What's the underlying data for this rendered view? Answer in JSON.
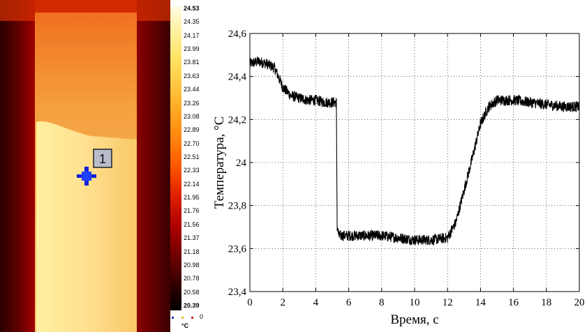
{
  "thermal_image": {
    "marker_label": "1"
  },
  "colorbar": {
    "labels": [
      "24.53",
      "24.35",
      "24.17",
      "23.99",
      "23.81",
      "23.63",
      "23.44",
      "23.26",
      "23.08",
      "22.89",
      "22.70",
      "22.51",
      "22.33",
      "22.14",
      "21.95",
      "21.76",
      "21.56",
      "21.37",
      "21.18",
      "20.98",
      "20.78",
      "20.58",
      "20.39"
    ],
    "footer_value": "0",
    "unit": "°C"
  },
  "chart_data": {
    "type": "line",
    "xlabel": "Время, с",
    "ylabel": "Температура, °С",
    "xlim": [
      0,
      20
    ],
    "ylim": [
      23.4,
      24.6
    ],
    "x_ticks": [
      "0",
      "2",
      "4",
      "6",
      "8",
      "10",
      "12",
      "14",
      "16",
      "18",
      "20"
    ],
    "y_ticks": [
      "23,4",
      "23,6",
      "23,8",
      "24",
      "24,2",
      "24,4",
      "24,6"
    ],
    "grid": true,
    "series": [
      {
        "x": [
          0,
          0.5,
          1.0,
          1.5,
          2.0,
          2.5,
          3.0,
          3.5,
          4.0,
          4.5,
          5.0,
          5.25,
          5.3,
          5.4,
          6.0,
          7.0,
          8.0,
          9.0,
          10.0,
          11.0,
          12.0,
          12.5,
          13.0,
          13.5,
          14.0,
          14.5,
          15.0,
          16.0,
          17.0,
          18.0,
          19.0,
          20.0
        ],
        "y": [
          24.46,
          24.47,
          24.46,
          24.44,
          24.35,
          24.31,
          24.3,
          24.29,
          24.29,
          24.28,
          24.28,
          24.28,
          23.7,
          23.66,
          23.66,
          23.66,
          23.66,
          23.65,
          23.64,
          23.64,
          23.65,
          23.72,
          23.87,
          24.02,
          24.18,
          24.26,
          24.29,
          24.29,
          24.28,
          24.27,
          24.26,
          24.26
        ],
        "noise_amplitude": 0.025
      }
    ]
  }
}
